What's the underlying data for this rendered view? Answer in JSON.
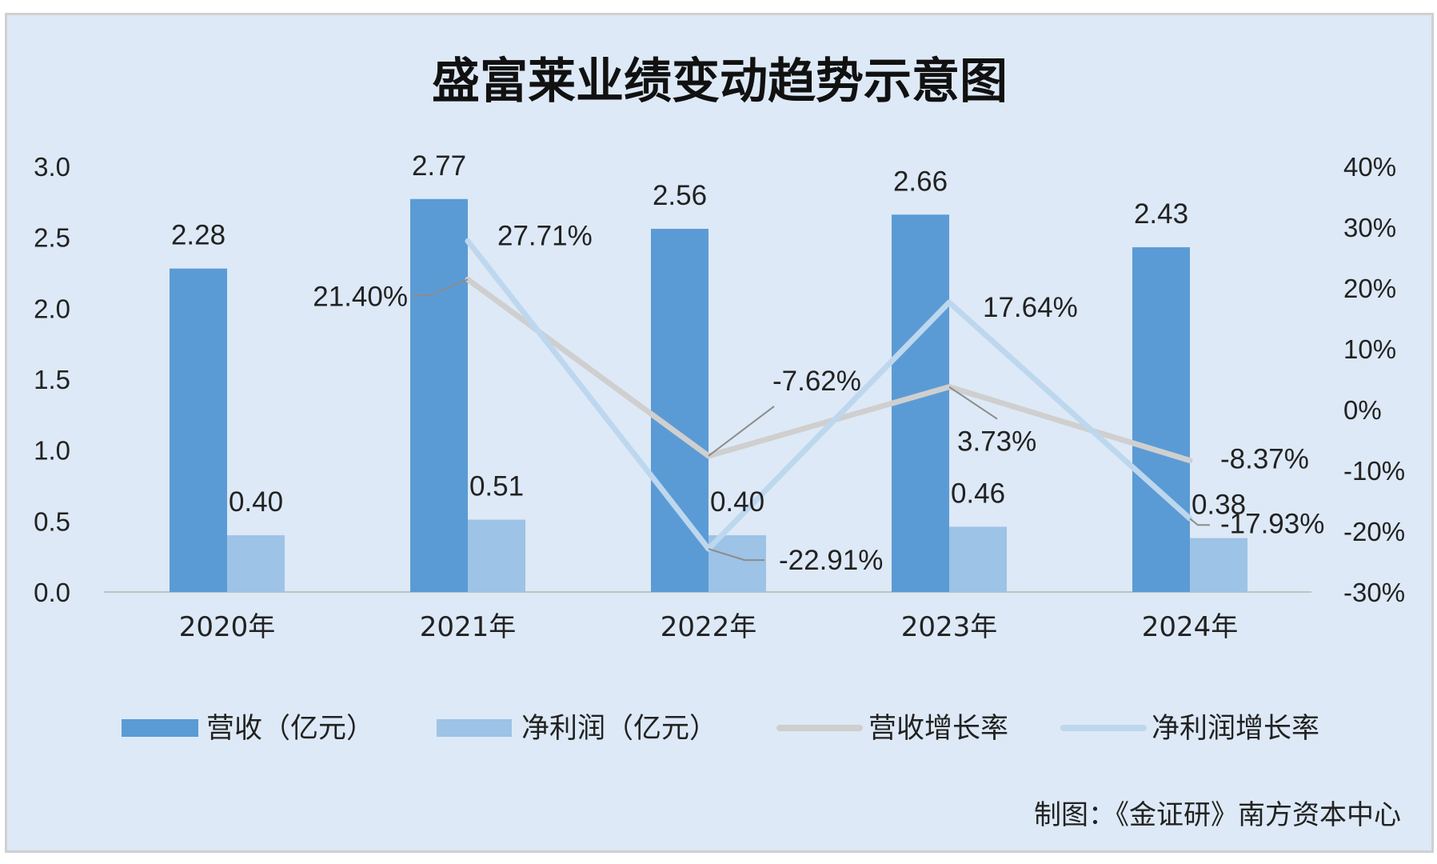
{
  "chart_data": {
    "type": "bar",
    "title": "盛富莱业绩变动趋势示意图",
    "categories": [
      "2020年",
      "2021年",
      "2022年",
      "2023年",
      "2024年"
    ],
    "ylim_left": [
      0,
      3.0
    ],
    "yticks_left": [
      "3.0",
      "2.5",
      "2.0",
      "1.5",
      "1.0",
      "0.5",
      "0.0"
    ],
    "ylim_right": [
      -30,
      40
    ],
    "yticks_right": [
      "40%",
      "30%",
      "20%",
      "10%",
      "0%",
      "-10%",
      "-20%",
      "-30%"
    ],
    "series": [
      {
        "name": "营收（亿元）",
        "type": "bar",
        "axis": "left",
        "color": "#5b9bd5",
        "values": [
          2.28,
          2.77,
          2.56,
          2.66,
          2.43
        ],
        "labels": [
          "2.28",
          "2.77",
          "2.56",
          "2.66",
          "2.43"
        ]
      },
      {
        "name": "净利润（亿元）",
        "type": "bar",
        "axis": "left",
        "color": "#9dc3e6",
        "values": [
          0.4,
          0.51,
          0.4,
          0.46,
          0.38
        ],
        "labels": [
          "0.40",
          "0.51",
          "0.40",
          "0.46",
          "0.38"
        ]
      },
      {
        "name": "营收增长率",
        "type": "line",
        "axis": "right",
        "color": "#cfcfcf",
        "values": [
          null,
          21.4,
          -7.62,
          3.73,
          -8.37
        ],
        "labels": [
          "",
          "21.40%",
          "-7.62%",
          "3.73%",
          "-8.37%"
        ]
      },
      {
        "name": "净利润增长率",
        "type": "line",
        "axis": "right",
        "color": "#bdd7ee",
        "values": [
          null,
          27.71,
          -22.91,
          17.64,
          -17.93
        ],
        "labels": [
          "",
          "27.71%",
          "-22.91%",
          "17.64%",
          "-17.93%"
        ]
      }
    ],
    "legend_position": "bottom",
    "grid": false
  },
  "source": "制图：《金证研》南方资本中心"
}
